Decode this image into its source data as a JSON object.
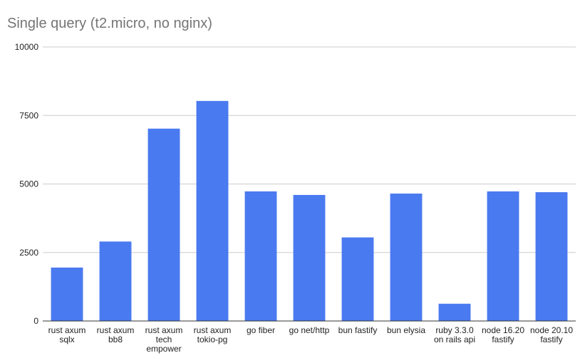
{
  "chart_data": {
    "type": "bar",
    "title": "Single query (t2.micro, no nginx)",
    "xlabel": "",
    "ylabel": "",
    "ylim": [
      0,
      10000
    ],
    "yticks": [
      "0",
      "2500",
      "5000",
      "7500",
      "10000"
    ],
    "ytick_values": [
      0,
      2500,
      5000,
      7500,
      10000
    ],
    "grid": true,
    "bar_color": "#4a7af0",
    "grid_color": "#cccccc",
    "axis_color": "#333333",
    "categories": [
      [
        "rust axum",
        "sqlx"
      ],
      [
        "rust axum",
        "bb8"
      ],
      [
        "rust axum",
        "tech",
        "empower"
      ],
      [
        "rust axum",
        "tokio-pg"
      ],
      [
        "go fiber"
      ],
      [
        "go net/http"
      ],
      [
        "bun fastify"
      ],
      [
        "bun elysia"
      ],
      [
        "ruby 3.3.0",
        "on rails api"
      ],
      [
        "node 16.20",
        "fastify"
      ],
      [
        "node 20.10",
        "fastify"
      ]
    ],
    "values": [
      1950,
      2900,
      7020,
      8030,
      4730,
      4600,
      3050,
      4650,
      630,
      4730,
      4700
    ]
  }
}
